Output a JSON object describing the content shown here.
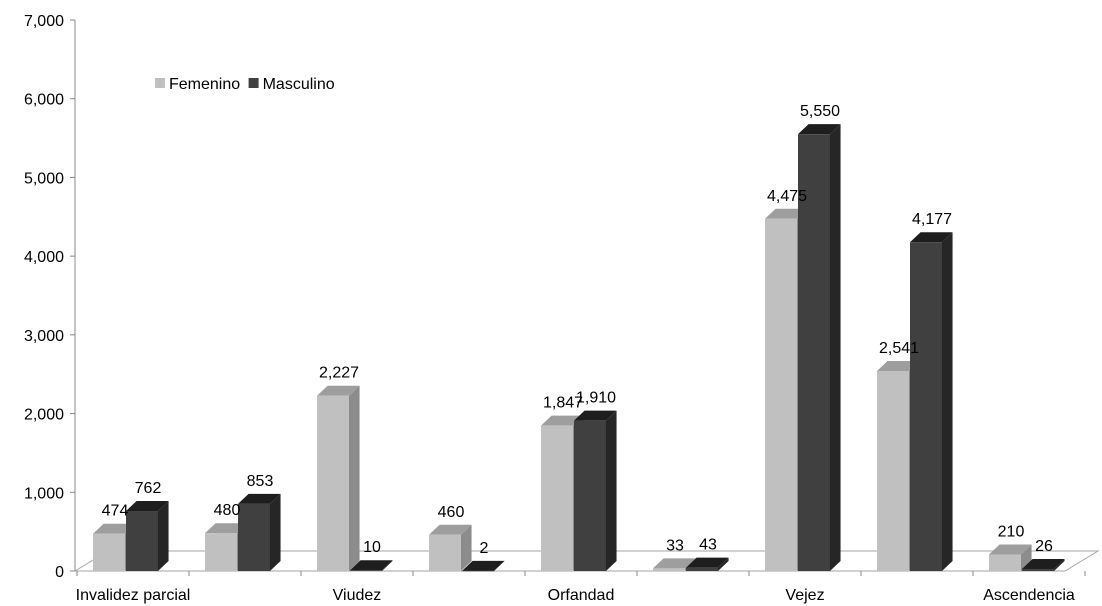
{
  "chart_data": {
    "type": "bar",
    "categories": [
      "Invalidez parcial",
      "",
      "Viudez",
      "",
      "Orfandad",
      "",
      "Vejez",
      "",
      "Ascendencia"
    ],
    "series": [
      {
        "name": "Femenino",
        "values": [
          474,
          480,
          2227,
          460,
          1847,
          33,
          4475,
          2541,
          210
        ]
      },
      {
        "name": "Masculino",
        "values": [
          762,
          853,
          10,
          2,
          1910,
          43,
          5550,
          4177,
          26
        ]
      }
    ],
    "data_labels": {
      "Femenino": [
        "474",
        "480",
        "2,227",
        "460",
        "1,847",
        "33",
        "4,475",
        "2,541",
        "210"
      ],
      "Masculino": [
        "762",
        "853",
        "10",
        "2",
        "1,910",
        "43",
        "5,550",
        "4,177",
        "26"
      ]
    },
    "ylim": [
      0,
      7000
    ],
    "y_ticks": [
      0,
      1000,
      2000,
      3000,
      4000,
      5000,
      6000,
      7000
    ],
    "y_tick_labels": [
      "0",
      "1,000",
      "2,000",
      "3,000",
      "4,000",
      "5,000",
      "6,000",
      "7,000"
    ],
    "title": "",
    "xlabel": "",
    "ylabel": "",
    "grid": false,
    "legend_position": "top-left",
    "style": "3d-column",
    "colors": {
      "Femenino": {
        "front": "#c0c0c0",
        "side": "#8c8c8c",
        "top": "#9e9e9e"
      },
      "Masculino": {
        "front": "#404040",
        "side": "#262626",
        "top": "#1e1e1e"
      }
    }
  }
}
